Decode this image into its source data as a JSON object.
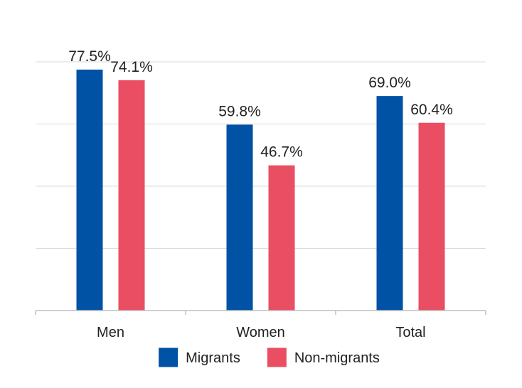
{
  "chart_data": {
    "type": "bar",
    "title": "",
    "xlabel": "",
    "ylabel": "",
    "ylim": [
      0,
      80
    ],
    "grid": true,
    "legend_position": "bottom-center",
    "categories": [
      "Men",
      "Women",
      "Total"
    ],
    "series": [
      {
        "name": "Migrants",
        "color": "#0052A5",
        "values": [
          77.5,
          59.8,
          69.0
        ],
        "labels": [
          "77.5%",
          "59.8%",
          "69.0%"
        ]
      },
      {
        "name": "Non-migrants",
        "color": "#E94E63",
        "values": [
          74.1,
          46.7,
          60.4
        ],
        "labels": [
          "74.1%",
          "46.7%",
          "60.4%"
        ]
      }
    ]
  }
}
